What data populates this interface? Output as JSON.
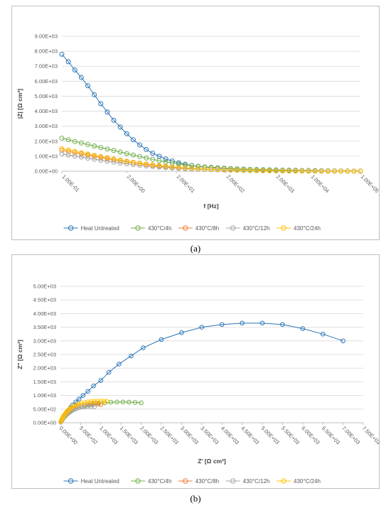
{
  "chart_data": [
    {
      "type": "scatter",
      "panel_label": "(a)",
      "xlabel": "f [Hz]",
      "ylabel": "|Z| [Ω cm²]",
      "x_scale": "log",
      "xlim": [
        0.1,
        100000
      ],
      "ylim": [
        0,
        9000
      ],
      "y_ticks": [
        "0.00E+00",
        "1.00E+03",
        "2.00E+03",
        "3.00E+03",
        "4.00E+03",
        "5.00E+03",
        "6.00E+03",
        "7.00E+03",
        "8.00E+03",
        "9.00E+03"
      ],
      "x_ticks": [
        "1.00E-01",
        "2.00E+00",
        "2.00E+01",
        "2.00E+02",
        "2.00E+03",
        "1.00E+04",
        "1.00E+05"
      ],
      "grid": "horizontal",
      "legend_position": "bottom",
      "series": [
        {
          "name": "Heat Untreated",
          "color": "#2E75B6",
          "values": [
            7800,
            7300,
            6750,
            6250,
            5700,
            5100,
            4500,
            3950,
            3400,
            2950,
            2500,
            2100,
            1750,
            1450,
            1200,
            1000,
            820,
            680,
            560,
            460,
            380,
            320,
            270,
            230,
            200,
            180,
            160,
            145,
            130,
            120,
            110,
            100,
            90,
            80,
            72,
            65,
            58,
            50,
            45,
            40,
            35,
            30,
            25,
            20,
            15,
            12,
            10
          ]
        },
        {
          "name": "430°C/4h",
          "color": "#70AD47",
          "values": [
            2200,
            2100,
            1980,
            1880,
            1780,
            1680,
            1580,
            1480,
            1380,
            1280,
            1180,
            1080,
            980,
            880,
            790,
            700,
            620,
            550,
            480,
            420,
            370,
            330,
            290,
            260,
            230,
            200,
            180,
            160,
            140,
            120,
            105,
            90,
            78,
            68,
            58,
            50,
            42,
            35,
            30,
            25,
            20,
            15,
            10,
            8,
            6,
            5,
            4
          ]
        },
        {
          "name": "430°C/8h",
          "color": "#ED7D31",
          "values": [
            1400,
            1320,
            1240,
            1160,
            1080,
            1000,
            920,
            840,
            760,
            690,
            620,
            560,
            500,
            440,
            390,
            340,
            300,
            260,
            225,
            195,
            170,
            148,
            130,
            115,
            100,
            88,
            76,
            66,
            57,
            49,
            42,
            36,
            31,
            26,
            22,
            18,
            15,
            12,
            10,
            8,
            7,
            6,
            5,
            4,
            3,
            2,
            2
          ]
        },
        {
          "name": "430°C/12h",
          "color": "#A5A5A5",
          "values": [
            1150,
            1080,
            1010,
            940,
            870,
            800,
            735,
            670,
            610,
            550,
            495,
            445,
            400,
            355,
            315,
            280,
            248,
            218,
            192,
            168,
            148,
            130,
            114,
            100,
            88,
            77,
            67,
            58,
            50,
            43,
            37,
            32,
            27,
            23,
            20,
            17,
            14,
            12,
            10,
            8,
            6,
            5,
            4,
            3,
            2,
            2,
            1
          ]
        },
        {
          "name": "430°C/24h",
          "color": "#FFC000",
          "values": [
            1500,
            1420,
            1330,
            1240,
            1150,
            1060,
            980,
            900,
            820,
            740,
            670,
            600,
            540,
            480,
            425,
            375,
            330,
            290,
            255,
            222,
            194,
            170,
            148,
            129,
            112,
            97,
            84,
            72,
            62,
            53,
            45,
            38,
            32,
            27,
            22,
            18,
            15,
            12,
            10,
            8,
            6,
            5,
            4,
            3,
            2,
            2,
            1
          ]
        }
      ]
    },
    {
      "type": "scatter",
      "panel_label": "(b)",
      "xlabel": "Z' [Ω cm²]",
      "ylabel": "Z'' [Ω cm²]",
      "xlim": [
        0,
        7500
      ],
      "ylim": [
        0,
        5000
      ],
      "x_ticks": [
        "0.00E+00",
        "5.00E+02",
        "1.00E+03",
        "1.50E+03",
        "2.00E+03",
        "2.50E+03",
        "3.00E+03",
        "3.50E+03",
        "4.00E+03",
        "4.50E+03",
        "5.00E+03",
        "5.50E+03",
        "6.00E+03",
        "6.50E+03",
        "7.00E+03",
        "7.50E+03"
      ],
      "y_ticks": [
        "0.00E+00",
        "5.00E+02",
        "1.00E+03",
        "1.50E+03",
        "2.00E+03",
        "2.50E+03",
        "3.00E+03",
        "3.50E+03",
        "4.00E+03",
        "4.50E+03",
        "5.00E+03"
      ],
      "grid": "horizontal",
      "legend_position": "bottom",
      "series": [
        {
          "name": "Heat Untreated",
          "color": "#2E75B6",
          "x": [
            20,
            40,
            60,
            80,
            100,
            130,
            160,
            200,
            250,
            300,
            380,
            460,
            560,
            680,
            820,
            1000,
            1200,
            1450,
            1750,
            2050,
            2500,
            3000,
            3500,
            4000,
            4500,
            5000,
            5500,
            6000,
            6500,
            7000
          ],
          "y": [
            50,
            100,
            150,
            210,
            270,
            330,
            400,
            470,
            560,
            650,
            760,
            870,
            1000,
            1150,
            1350,
            1550,
            1850,
            2150,
            2450,
            2750,
            3050,
            3300,
            3500,
            3600,
            3650,
            3650,
            3600,
            3450,
            3250,
            3000
          ]
        },
        {
          "name": "430°C/4h",
          "color": "#70AD47",
          "x": [
            10,
            20,
            35,
            50,
            70,
            90,
            115,
            140,
            170,
            200,
            240,
            280,
            330,
            390,
            450,
            520,
            600,
            700,
            800,
            950,
            1100,
            1250,
            1400,
            1550,
            1700,
            1850,
            2000
          ],
          "y": [
            30,
            60,
            95,
            130,
            165,
            200,
            240,
            280,
            320,
            360,
            400,
            440,
            480,
            520,
            560,
            590,
            620,
            650,
            680,
            710,
            730,
            750,
            760,
            760,
            755,
            745,
            730
          ]
        },
        {
          "name": "430°C/8h",
          "color": "#ED7D31",
          "x": [
            10,
            20,
            35,
            50,
            70,
            90,
            115,
            140,
            170,
            200,
            240,
            280,
            330,
            390,
            450,
            520,
            600,
            680,
            760,
            840,
            920,
            1000
          ],
          "y": [
            30,
            70,
            110,
            150,
            195,
            240,
            285,
            330,
            375,
            420,
            460,
            500,
            540,
            580,
            615,
            645,
            670,
            690,
            700,
            700,
            690,
            670
          ]
        },
        {
          "name": "430°C/12h",
          "color": "#A5A5A5",
          "x": [
            10,
            20,
            35,
            50,
            70,
            90,
            115,
            140,
            170,
            200,
            240,
            280,
            330,
            390,
            450,
            520,
            600,
            680,
            760,
            840
          ],
          "y": [
            25,
            60,
            95,
            130,
            170,
            210,
            250,
            290,
            330,
            370,
            410,
            450,
            490,
            520,
            550,
            575,
            590,
            600,
            595,
            580
          ]
        },
        {
          "name": "430°C/24h",
          "color": "#FFC000",
          "x": [
            10,
            20,
            35,
            50,
            70,
            90,
            115,
            140,
            170,
            200,
            240,
            280,
            330,
            390,
            450,
            520,
            600,
            680,
            760,
            840,
            920,
            1000,
            1080,
            1150
          ],
          "y": [
            35,
            80,
            125,
            170,
            220,
            270,
            320,
            370,
            420,
            470,
            520,
            570,
            610,
            650,
            690,
            720,
            745,
            765,
            780,
            790,
            795,
            795,
            790,
            780
          ]
        }
      ]
    }
  ]
}
